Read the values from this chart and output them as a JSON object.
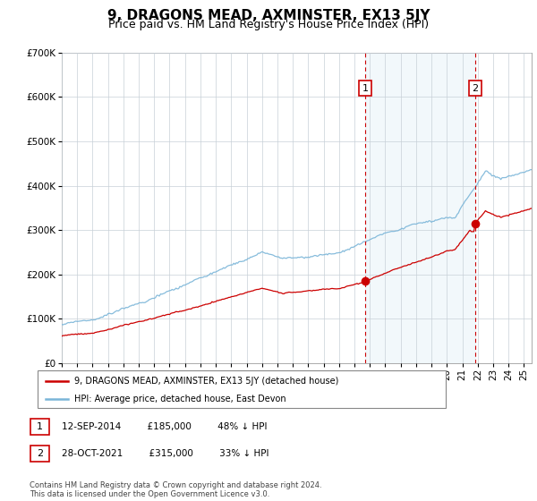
{
  "title": "9, DRAGONS MEAD, AXMINSTER, EX13 5JY",
  "subtitle": "Price paid vs. HM Land Registry's House Price Index (HPI)",
  "ylim": [
    0,
    700000
  ],
  "yticks": [
    0,
    100000,
    200000,
    300000,
    400000,
    500000,
    600000,
    700000
  ],
  "xlim_start": 1995.0,
  "xlim_end": 2025.5,
  "transaction1_date": 2014.7,
  "transaction1_price": 185000,
  "transaction1_label": "1",
  "transaction2_date": 2021.83,
  "transaction2_price": 315000,
  "transaction2_label": "2",
  "hpi_color": "#7ab5d8",
  "hpi_fill_color": "#daeaf5",
  "price_color": "#cc0000",
  "grid_color": "#c8d0d8",
  "background_color": "#ffffff",
  "legend_label1": "9, DRAGONS MEAD, AXMINSTER, EX13 5JY (detached house)",
  "legend_label2": "HPI: Average price, detached house, East Devon",
  "footer": "Contains HM Land Registry data © Crown copyright and database right 2024.\nThis data is licensed under the Open Government Licence v3.0.",
  "title_fontsize": 11,
  "subtitle_fontsize": 9,
  "axis_fontsize": 7.5
}
